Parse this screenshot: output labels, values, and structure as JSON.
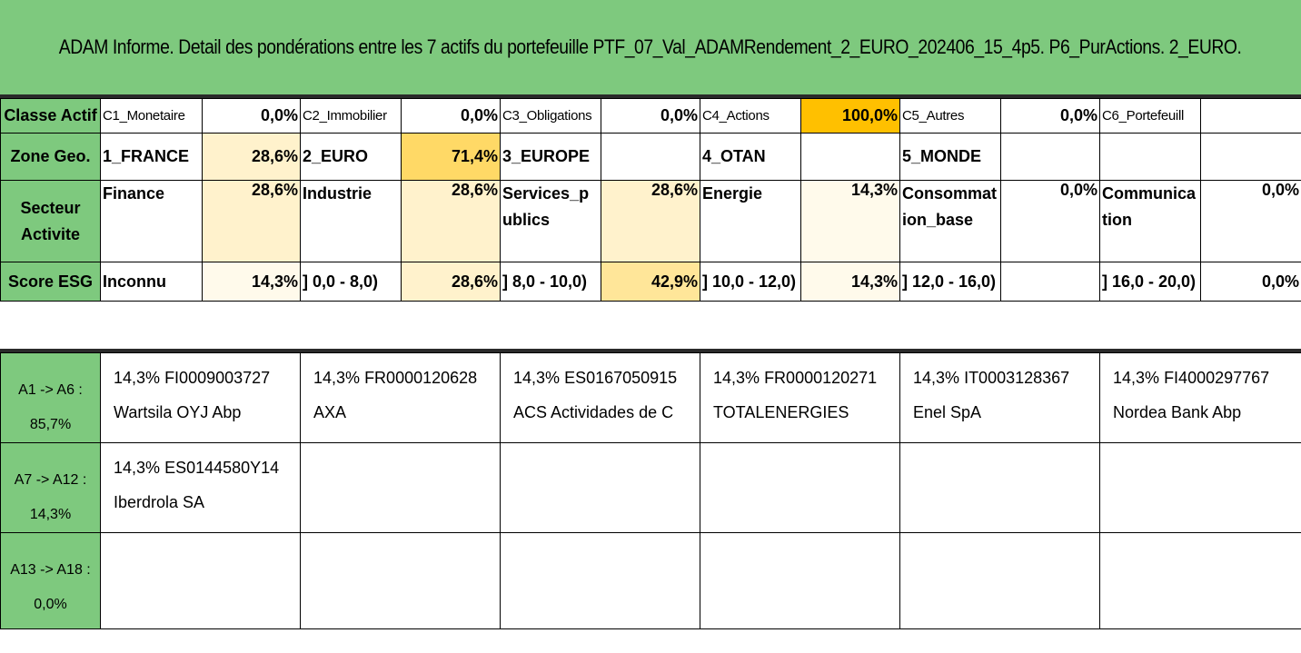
{
  "title": "ADAM Informe. Detail des pondérations entre les 7 actifs du portefeuille PTF_07_Val_ADAMRendement_2_EURO_202406_15_4p5. P6_PurActions. 2_EURO.",
  "colors": {
    "header_green": "#7ec97e",
    "highlight_strong": "#ffc000",
    "highlight_medium": "#ffd966",
    "highlight_light": "#ffe699",
    "highlight_pale": "#fff2cc"
  },
  "rows": {
    "classe": {
      "header": "Classe Actif",
      "cells": [
        {
          "label": "C1_Monetaire",
          "value": "0,0%"
        },
        {
          "label": "C2_Immobilier",
          "value": "0,0%"
        },
        {
          "label": "C3_Obligations",
          "value": "0,0%"
        },
        {
          "label": "C4_Actions",
          "value": "100,0%"
        },
        {
          "label": "C5_Autres",
          "value": "0,0%"
        },
        {
          "label": "C6_Portefeuill",
          "value": ""
        }
      ]
    },
    "zone": {
      "header": "Zone Geo.",
      "cells": [
        {
          "label": "1_FRANCE",
          "value": "28,6%"
        },
        {
          "label": "2_EURO",
          "value": "71,4%"
        },
        {
          "label": "3_EUROPE",
          "value": ""
        },
        {
          "label": "4_OTAN",
          "value": ""
        },
        {
          "label": "5_MONDE",
          "value": ""
        },
        {
          "label": "",
          "value": ""
        }
      ]
    },
    "secteur": {
      "header_line1": "Secteur",
      "header_line2": "Activite",
      "cells": [
        {
          "label": "Finance",
          "value": "28,6%"
        },
        {
          "label": "Industrie",
          "value": "28,6%"
        },
        {
          "label": "Services_publics",
          "value": "28,6%"
        },
        {
          "label": "Energie",
          "value": "14,3%"
        },
        {
          "label": "Consommation_base",
          "value": "0,0%"
        },
        {
          "label": "Communication",
          "value": "0,0%"
        }
      ]
    },
    "esg": {
      "header": "Score ESG",
      "cells": [
        {
          "label": "Inconnu",
          "value": "14,3%"
        },
        {
          "label": "] 0,0 - 8,0)",
          "value": "28,6%"
        },
        {
          "label": "] 8,0 - 10,0)",
          "value": "42,9%"
        },
        {
          "label": "] 10,0 - 12,0)",
          "value": "14,3%"
        },
        {
          "label": "] 12,0 - 16,0)",
          "value": ""
        },
        {
          "label": "] 16,0 - 20,0)",
          "value": "0,0%"
        }
      ]
    }
  },
  "assets": {
    "groups": [
      {
        "range": "A1 -> A6 :",
        "total": "85,7%",
        "items": [
          {
            "weight": "14,3%",
            "isin": "FI0009003727",
            "name": "Wartsila OYJ Abp"
          },
          {
            "weight": "14,3%",
            "isin": "FR0000120628",
            "name": "AXA"
          },
          {
            "weight": "14,3%",
            "isin": "ES0167050915",
            "name": "ACS Actividades de C"
          },
          {
            "weight": "14,3%",
            "isin": "FR0000120271",
            "name": "TOTALENERGIES"
          },
          {
            "weight": "14,3%",
            "isin": "IT0003128367",
            "name": "Enel SpA"
          },
          {
            "weight": "14,3%",
            "isin": "FI4000297767",
            "name": "Nordea Bank Abp"
          }
        ]
      },
      {
        "range": "A7 -> A12 :",
        "total": "14,3%",
        "items": [
          {
            "weight": "14,3%",
            "isin": "ES0144580Y14",
            "name": "Iberdrola SA"
          }
        ]
      },
      {
        "range": "A13 -> A18 :",
        "total": "0,0%",
        "items": []
      }
    ]
  }
}
